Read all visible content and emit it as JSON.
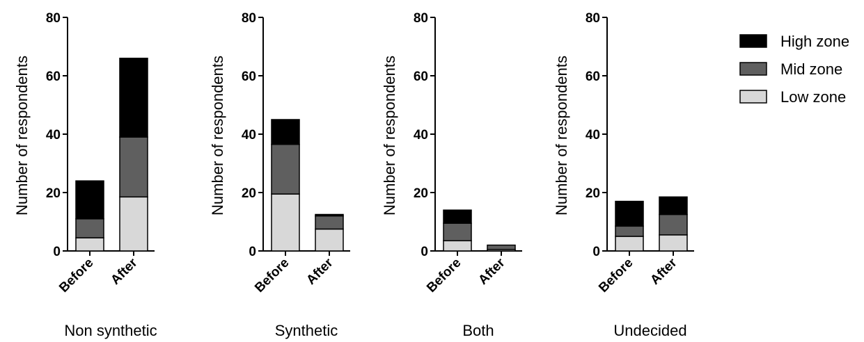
{
  "chart_data": {
    "type": "bar",
    "stacked": true,
    "categories": [
      "Before",
      "After"
    ],
    "ylabel": "Number of respondents",
    "ylim": [
      0,
      80
    ],
    "yticks": [
      0,
      20,
      40,
      60,
      80
    ],
    "legend": {
      "placement": "top-right",
      "order": [
        "High zone",
        "Mid zone",
        "Low zone"
      ]
    },
    "colors": {
      "High zone": "#000000",
      "Mid zone": "#5f5f5f",
      "Low zone": "#d8d8d8"
    },
    "groups": [
      {
        "title": "Non synthetic",
        "series": [
          {
            "name": "Low zone",
            "values": [
              4.5,
              18.5
            ]
          },
          {
            "name": "Mid zone",
            "values": [
              6.5,
              20.5
            ]
          },
          {
            "name": "High zone",
            "values": [
              13.0,
              27.0
            ]
          }
        ]
      },
      {
        "title": "Synthetic",
        "series": [
          {
            "name": "Low zone",
            "values": [
              19.5,
              7.5
            ]
          },
          {
            "name": "Mid zone",
            "values": [
              17.0,
              4.5
            ]
          },
          {
            "name": "High zone",
            "values": [
              8.5,
              0.5
            ]
          }
        ]
      },
      {
        "title": "Both",
        "series": [
          {
            "name": "Low zone",
            "values": [
              3.5,
              0.5
            ]
          },
          {
            "name": "Mid zone",
            "values": [
              6.0,
              1.5
            ]
          },
          {
            "name": "High zone",
            "values": [
              4.5,
              0.0
            ]
          }
        ]
      },
      {
        "title": "Undecided",
        "series": [
          {
            "name": "Low zone",
            "values": [
              5.0,
              5.5
            ]
          },
          {
            "name": "Mid zone",
            "values": [
              3.5,
              7.0
            ]
          },
          {
            "name": "High zone",
            "values": [
              8.5,
              6.0
            ]
          }
        ]
      }
    ]
  }
}
